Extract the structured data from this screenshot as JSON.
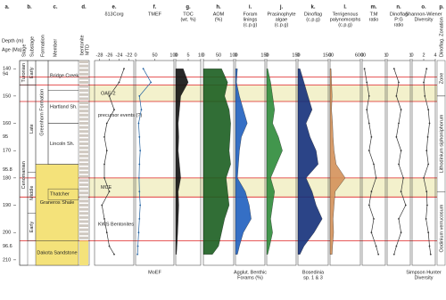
{
  "chart_data": {
    "type": "depth-profile",
    "depth_axis": {
      "letter": "a.",
      "title": "Depth (m)",
      "ylim": [
        137,
        212
      ],
      "yticks": [
        140,
        150,
        160,
        170,
        180,
        190,
        200,
        210
      ]
    },
    "ages": {
      "title": "Age (Ma)",
      "marks": [
        {
          "depth": 140,
          "value": 94
        },
        {
          "depth": 163,
          "value": 95
        },
        {
          "depth": 175,
          "value": 95.8
        },
        {
          "depth": 203,
          "value": 96.6
        }
      ]
    },
    "stages": {
      "letter": "b.",
      "headers": [
        "Stage",
        "Substage"
      ],
      "items": [
        {
          "name": "Turonian",
          "top": 137,
          "base": 146
        },
        {
          "name": "Cenomanian",
          "top": 146,
          "base": 212
        }
      ],
      "substages": [
        {
          "name": "Early",
          "top": 137,
          "base": 146
        },
        {
          "name": "Late",
          "top": 146,
          "base": 178
        },
        {
          "name": "Middle",
          "top": 178,
          "base": 193
        },
        {
          "name": "Early",
          "top": 193,
          "base": 203
        }
      ]
    },
    "formations": {
      "letter": "c.",
      "headers": [
        "Formation",
        "Member"
      ],
      "items": [
        {
          "name": "Greenhorn Formation",
          "top": 137,
          "base": 175
        },
        {
          "name": "Graneros Shale",
          "top": 175,
          "base": 203
        },
        {
          "name": "Dakota Sandstone",
          "top": 203,
          "base": 212
        }
      ],
      "members": [
        {
          "name": "Bridge Creek",
          "top": 137,
          "base": 148
        },
        {
          "name": "Hartland Sh.",
          "top": 148,
          "base": 160
        },
        {
          "name": "Lincoln Sh.",
          "top": 160,
          "base": 175
        },
        {
          "name": "Thatcher",
          "top": 184,
          "base": 188
        }
      ]
    },
    "lithology": {
      "letter": "d.",
      "legend": [
        "bentonite",
        "MTD"
      ]
    },
    "events": [
      {
        "label": "OAE-2",
        "top": 146,
        "base": 152
      },
      {
        "label": "MCE",
        "top": 180,
        "base": 187
      }
    ],
    "boundaries": [
      143,
      146,
      152,
      180,
      187,
      203
    ],
    "annotations": [
      {
        "text": "precursor events (?)",
        "depth": 157
      },
      {
        "text": "KWS Bentonites",
        "depth": 197
      }
    ],
    "depths": [
      140,
      145,
      150,
      155,
      160,
      165,
      170,
      175,
      180,
      185,
      190,
      195,
      200,
      205,
      208
    ],
    "panels": [
      {
        "letter": "e.",
        "title": [
          "δ13Corg"
        ],
        "xlim": [
          -29,
          -21
        ],
        "xticks": [
          -28,
          -26,
          -24,
          -22
        ],
        "color": "#333333",
        "kind": "line",
        "values": [
          -23,
          -24,
          -26,
          -25,
          -26.5,
          -27,
          -26.5,
          -27,
          -27,
          -26,
          -27.5,
          -27,
          -26.5,
          -26,
          -25
        ]
      },
      {
        "letter": "f.",
        "title": [
          "TMEF"
        ],
        "bottom": [
          "MoEF"
        ],
        "xlim": [
          0,
          100
        ],
        "xticks": [
          0,
          50,
          100
        ],
        "color": "#2060a0",
        "kind": "line",
        "values": [
          20,
          40,
          10,
          15,
          8,
          10,
          12,
          10,
          9,
          10,
          12,
          10,
          8,
          6,
          5
        ]
      },
      {
        "letter": "g.",
        "title": [
          "TOC",
          "(wt. %)"
        ],
        "xlim": [
          0,
          10
        ],
        "xticks": [
          0,
          5,
          10
        ],
        "color": "#111111",
        "kind": "area",
        "values": [
          3,
          5,
          2,
          1.5,
          1,
          1.2,
          1,
          1.5,
          2,
          1,
          1.2,
          1,
          0.8,
          0.5,
          0.3
        ]
      },
      {
        "letter": "h.",
        "title": [
          "AOM",
          "(%)"
        ],
        "xlim": [
          0,
          100
        ],
        "xticks": [
          0,
          50,
          100
        ],
        "color": "#1b5e20",
        "kind": "area",
        "values": [
          60,
          80,
          70,
          85,
          90,
          88,
          85,
          90,
          75,
          80,
          85,
          70,
          60,
          50,
          30
        ]
      },
      {
        "letter": "i.",
        "title": [
          "Foram",
          "linings",
          "(c.p.g)"
        ],
        "bottom": [
          "Agglut. Benthic",
          "Forams (%)"
        ],
        "xlim": [
          0,
          150
        ],
        "xticks": [
          0,
          150
        ],
        "color": "#1f5fbf",
        "kind": "area",
        "values": [
          10,
          5,
          20,
          40,
          60,
          30,
          20,
          15,
          10,
          50,
          70,
          80,
          40,
          20,
          10
        ]
      },
      {
        "letter": "j.",
        "title": [
          "Prasinophyte",
          "algae",
          "(c.p.g)"
        ],
        "xlim": [
          0,
          150
        ],
        "xticks": [
          0,
          150
        ],
        "color": "#2e8b3a",
        "kind": "area",
        "values": [
          5,
          20,
          30,
          40,
          30,
          60,
          80,
          50,
          20,
          40,
          30,
          20,
          30,
          15,
          5
        ]
      },
      {
        "letter": "k.",
        "title": [
          "Dinoflag",
          "(c.p.g)"
        ],
        "bottom": [
          "Bosedinia",
          "sp. 1 & 3"
        ],
        "xlim": [
          0,
          1500
        ],
        "xticks": [
          0,
          1500
        ],
        "color": "#14307a",
        "kind": "area",
        "values": [
          100,
          300,
          500,
          700,
          400,
          600,
          900,
          1000,
          400,
          700,
          900,
          1200,
          800,
          300,
          100
        ]
      },
      {
        "letter": "l.",
        "title": [
          "Terrigenous",
          "palynomorphs",
          "(c.p.g)"
        ],
        "xlim": [
          0,
          6000
        ],
        "xticks": [
          0,
          6000
        ],
        "color": "#d4915a",
        "kind": "area",
        "values": [
          200,
          300,
          400,
          300,
          500,
          600,
          800,
          1200,
          3000,
          1000,
          800,
          600,
          700,
          500,
          400
        ]
      },
      {
        "letter": "m.",
        "title": [
          "T:M",
          "ratio"
        ],
        "xlim": [
          0,
          1
        ],
        "xticks": [
          0,
          1
        ],
        "color": "#333333",
        "kind": "line",
        "values": [
          0.1,
          0.2,
          0.3,
          0.2,
          0.3,
          0.4,
          0.3,
          0.5,
          0.6,
          0.4,
          0.3,
          0.5,
          0.4,
          0.6,
          0.7
        ]
      },
      {
        "letter": "n.",
        "title": [
          "Dinoflag",
          "P:G",
          "ratio"
        ],
        "xlim": [
          0,
          1
        ],
        "xticks": [
          0,
          1
        ],
        "color": "#333333",
        "kind": "line",
        "values": [
          0.3,
          0.5,
          0.4,
          0.6,
          0.5,
          0.4,
          0.6,
          0.5,
          0.7,
          0.6,
          0.8,
          0.5,
          0.6,
          0.4,
          0.3
        ]
      },
      {
        "letter": "o.",
        "title": [
          "Shannon-Wiener",
          "Diversity"
        ],
        "bottom": [
          "Simpson Hunter",
          "Diversity"
        ],
        "xlim": [
          0,
          4
        ],
        "xticks": [
          0,
          2,
          4
        ],
        "color": "#333333",
        "kind": "line",
        "values": [
          2.5,
          2,
          2.2,
          2.8,
          3,
          2.7,
          2.5,
          2.8,
          2,
          2.5,
          2.6,
          2.4,
          2.8,
          3,
          3.2
        ]
      }
    ],
    "zonation": {
      "letter": "p.",
      "title": "Dinoflag. Zonation",
      "items": [
        {
          "name": "Zone",
          "top": 137,
          "base": 150
        },
        {
          "name": "Lithodinium siphoniphorum",
          "top": 150,
          "base": 185
        },
        {
          "name": "Oodinium verrucosum",
          "top": 185,
          "base": 212
        }
      ]
    }
  }
}
